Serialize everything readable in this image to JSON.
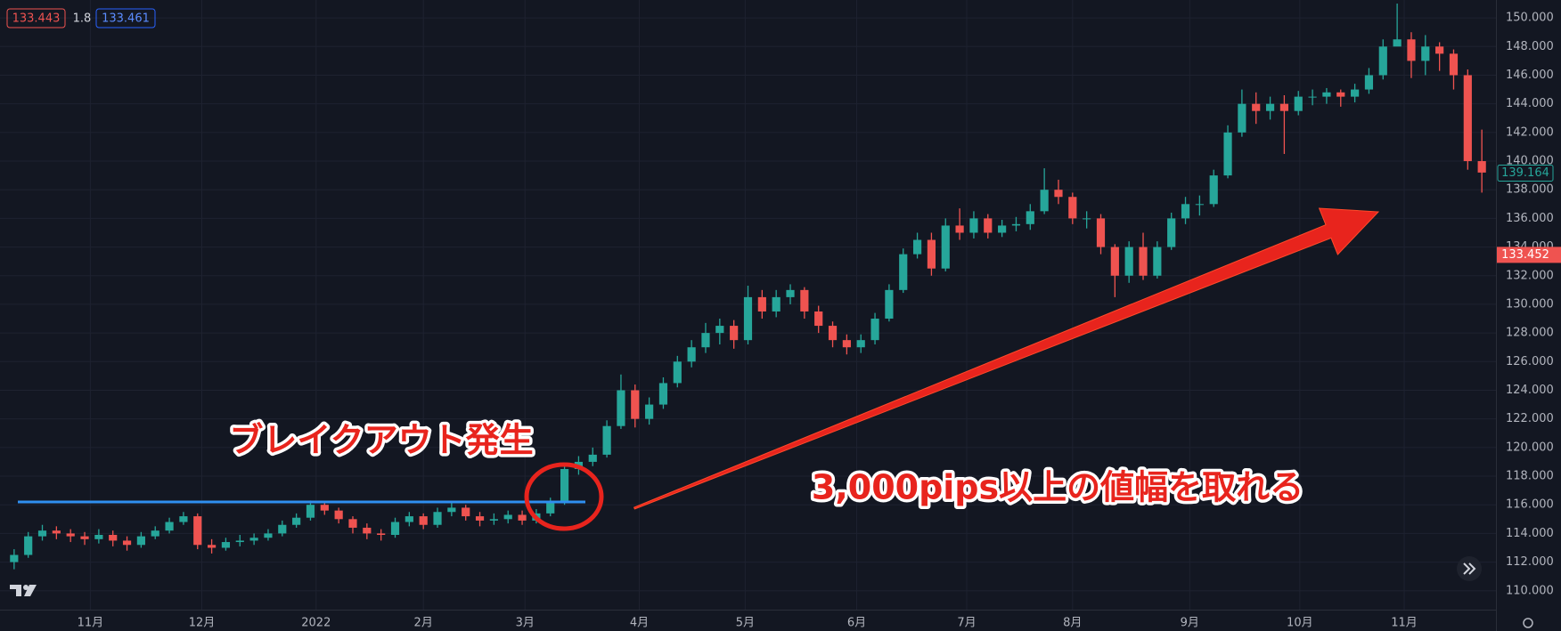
{
  "chart_data": {
    "type": "candlestick",
    "colors": {
      "up": "#26a69a",
      "down": "#ef5350",
      "grid": "#1e2230",
      "background": "#131722",
      "level_line": "#2f8ff0"
    },
    "grid": true,
    "header_values": [
      133.443,
      1.8,
      133.461
    ],
    "annotations": [
      "ブレイクアウト発生",
      "3,000pips以上の値幅を取れる"
    ],
    "level_line": 116.2,
    "last_price": 139.164,
    "marker_price": 133.452,
    "xlim": [
      -1,
      105
    ],
    "xticks": [
      {
        "value": 5.4,
        "label": "11月"
      },
      {
        "value": 13.3,
        "label": "12月"
      },
      {
        "value": 21.4,
        "label": "2022"
      },
      {
        "value": 29.0,
        "label": "2月"
      },
      {
        "value": 36.2,
        "label": "3月"
      },
      {
        "value": 44.3,
        "label": "4月"
      },
      {
        "value": 51.8,
        "label": "5月"
      },
      {
        "value": 59.7,
        "label": "6月"
      },
      {
        "value": 67.5,
        "label": "7月"
      },
      {
        "value": 75.0,
        "label": "8月"
      },
      {
        "value": 83.3,
        "label": "9月"
      },
      {
        "value": 91.1,
        "label": "10月"
      },
      {
        "value": 98.5,
        "label": "11月"
      }
    ],
    "ylim": [
      108.68,
      151.25
    ],
    "yticks": [
      {
        "value": 110,
        "label": "110.000"
      },
      {
        "value": 112,
        "label": "112.000"
      },
      {
        "value": 114,
        "label": "114.000"
      },
      {
        "value": 116,
        "label": "116.000"
      },
      {
        "value": 118,
        "label": "118.000"
      },
      {
        "value": 120,
        "label": "120.000"
      },
      {
        "value": 122,
        "label": "122.000"
      },
      {
        "value": 124,
        "label": "124.000"
      },
      {
        "value": 126,
        "label": "126.000"
      },
      {
        "value": 128,
        "label": "128.000"
      },
      {
        "value": 130,
        "label": "130.000"
      },
      {
        "value": 132,
        "label": "132.000"
      },
      {
        "value": 134,
        "label": "134.000"
      },
      {
        "value": 136,
        "label": "136.000"
      },
      {
        "value": 138,
        "label": "138.000"
      },
      {
        "value": 140,
        "label": "140.000"
      },
      {
        "value": 142,
        "label": "142.000"
      },
      {
        "value": 144,
        "label": "144.000"
      },
      {
        "value": 146,
        "label": "146.000"
      },
      {
        "value": 148,
        "label": "148.000"
      },
      {
        "value": 150,
        "label": "150.000"
      }
    ],
    "open": [
      112.0,
      112.5,
      113.8,
      114.2,
      114.0,
      113.8,
      113.6,
      113.9,
      113.5,
      113.2,
      113.8,
      114.2,
      114.8,
      115.2,
      113.2,
      113.0,
      113.4,
      113.5,
      113.7,
      114.0,
      114.6,
      115.1,
      116.0,
      115.6,
      115.0,
      114.4,
      114.0,
      113.9,
      114.8,
      115.2,
      114.6,
      115.5,
      115.8,
      115.2,
      114.9,
      115.0,
      115.3,
      114.9,
      115.4,
      116.2,
      118.5,
      119.0,
      119.5,
      121.5,
      124.0,
      122.0,
      123.0,
      124.5,
      126.0,
      127.0,
      128.0,
      128.5,
      127.5,
      130.5,
      129.5,
      130.5,
      131.0,
      129.5,
      128.5,
      127.5,
      127.0,
      127.5,
      129.0,
      131.0,
      133.5,
      134.5,
      132.5,
      135.5,
      135.0,
      136.0,
      135.0,
      135.5,
      135.6,
      136.5,
      138.0,
      137.5,
      136.0,
      136.0,
      134.0,
      132.0,
      134.0,
      132.0,
      134.0,
      136.0,
      137.0,
      137.0,
      139.0,
      142.0,
      144.0,
      143.5,
      144.0,
      143.5,
      144.5,
      144.5,
      144.8,
      144.5,
      145.0,
      146.0,
      148.0,
      148.5,
      147.0,
      148.0,
      147.5,
      146.0,
      140.0
    ],
    "high": [
      112.9,
      114.1,
      114.6,
      114.5,
      114.3,
      114.1,
      114.3,
      114.2,
      113.8,
      114.1,
      114.5,
      115.1,
      115.5,
      115.4,
      113.6,
      113.7,
      113.9,
      114.0,
      114.3,
      114.9,
      115.4,
      116.3,
      116.2,
      115.8,
      115.2,
      114.7,
      114.3,
      115.1,
      115.5,
      115.4,
      115.8,
      116.2,
      116.0,
      115.5,
      115.4,
      115.6,
      115.6,
      115.7,
      116.5,
      118.8,
      119.4,
      120.0,
      121.9,
      125.1,
      124.4,
      123.5,
      124.9,
      126.4,
      127.5,
      128.7,
      129.0,
      128.9,
      131.3,
      131.0,
      131.0,
      131.4,
      131.2,
      129.9,
      128.8,
      127.9,
      127.9,
      129.4,
      131.4,
      133.9,
      135.0,
      135.0,
      136.0,
      136.7,
      136.5,
      136.3,
      135.9,
      136.1,
      137.0,
      139.5,
      138.7,
      137.8,
      136.5,
      136.3,
      134.2,
      134.4,
      135.0,
      134.4,
      136.4,
      137.5,
      137.6,
      139.4,
      142.5,
      145.0,
      144.8,
      144.5,
      144.6,
      144.9,
      145.0,
      145.1,
      145.0,
      145.4,
      146.5,
      148.5,
      151.0,
      149.0,
      148.8,
      148.3,
      147.8,
      146.4,
      142.2
    ],
    "low": [
      111.5,
      112.3,
      113.5,
      113.6,
      113.4,
      113.2,
      113.3,
      113.1,
      112.8,
      113.0,
      113.6,
      114.0,
      114.6,
      112.9,
      112.6,
      112.8,
      113.1,
      113.2,
      113.5,
      113.8,
      114.4,
      114.9,
      115.3,
      114.7,
      114.0,
      113.6,
      113.5,
      113.7,
      114.5,
      114.3,
      114.4,
      115.2,
      114.9,
      114.5,
      114.6,
      114.7,
      114.6,
      114.7,
      115.2,
      116.0,
      118.1,
      118.7,
      119.3,
      121.3,
      121.4,
      121.6,
      122.7,
      124.2,
      125.6,
      126.6,
      127.2,
      126.9,
      127.2,
      129.0,
      129.1,
      130.0,
      129.0,
      128.0,
      127.0,
      126.5,
      126.6,
      127.2,
      128.8,
      130.8,
      133.2,
      132.0,
      132.3,
      134.5,
      134.6,
      134.6,
      134.7,
      135.1,
      135.2,
      136.3,
      137.0,
      135.6,
      135.3,
      133.5,
      130.5,
      131.5,
      131.7,
      131.8,
      133.8,
      135.6,
      136.2,
      136.8,
      138.8,
      141.7,
      142.6,
      142.9,
      140.5,
      143.2,
      143.9,
      144.0,
      143.8,
      144.1,
      144.7,
      145.7,
      148.2,
      145.8,
      146.0,
      146.3,
      145.0,
      139.4,
      137.8
    ],
    "close": [
      112.5,
      113.8,
      114.2,
      114.0,
      113.8,
      113.6,
      113.9,
      113.5,
      113.2,
      113.8,
      114.2,
      114.8,
      115.2,
      113.2,
      113.0,
      113.4,
      113.5,
      113.7,
      114.0,
      114.6,
      115.1,
      116.0,
      115.6,
      115.0,
      114.4,
      114.0,
      113.9,
      114.8,
      115.2,
      114.6,
      115.5,
      115.8,
      115.2,
      114.9,
      115.0,
      115.3,
      114.9,
      115.4,
      116.2,
      118.5,
      119.0,
      119.5,
      121.5,
      124.0,
      122.0,
      123.0,
      124.5,
      126.0,
      127.0,
      128.0,
      128.5,
      127.5,
      130.5,
      129.5,
      130.5,
      131.0,
      129.5,
      128.5,
      127.5,
      127.0,
      127.5,
      129.0,
      131.0,
      133.5,
      134.5,
      132.5,
      135.5,
      135.0,
      136.0,
      135.0,
      135.5,
      135.6,
      136.5,
      138.0,
      137.5,
      136.0,
      136.0,
      134.0,
      132.0,
      134.0,
      132.0,
      134.0,
      136.0,
      137.0,
      137.0,
      139.0,
      142.0,
      144.0,
      143.5,
      144.0,
      143.5,
      144.5,
      144.5,
      144.8,
      144.5,
      145.0,
      146.0,
      148.0,
      148.5,
      147.0,
      148.0,
      147.5,
      146.0,
      140.0,
      139.2
    ]
  }
}
